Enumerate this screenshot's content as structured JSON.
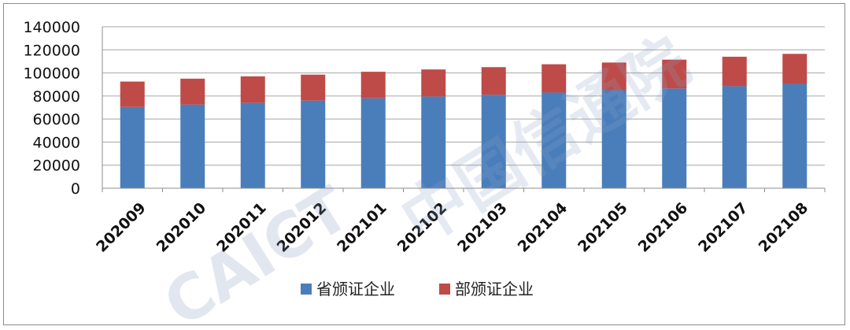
{
  "chart_data": {
    "type": "bar",
    "stacked": true,
    "categories": [
      "202009",
      "202010",
      "202011",
      "202012",
      "202101",
      "202102",
      "202103",
      "202104",
      "202105",
      "202106",
      "202107",
      "202108"
    ],
    "series": [
      {
        "name": "省颁证企业",
        "color": "#4a7ebb",
        "values": [
          70500,
          72500,
          74000,
          76000,
          78000,
          79500,
          81000,
          83000,
          85000,
          86500,
          88500,
          90500
        ]
      },
      {
        "name": "部颁证企业",
        "color": "#be4b48",
        "values": [
          22000,
          22500,
          23000,
          22500,
          23000,
          23500,
          24000,
          24500,
          24000,
          25000,
          25500,
          26000
        ]
      }
    ],
    "ylim": [
      0,
      140000
    ],
    "yticks": [
      0,
      20000,
      40000,
      60000,
      80000,
      100000,
      120000,
      140000
    ],
    "grid": true,
    "legend_position": "bottom"
  },
  "watermark": {
    "latin": "CAICT",
    "chinese": "中国信通院"
  }
}
